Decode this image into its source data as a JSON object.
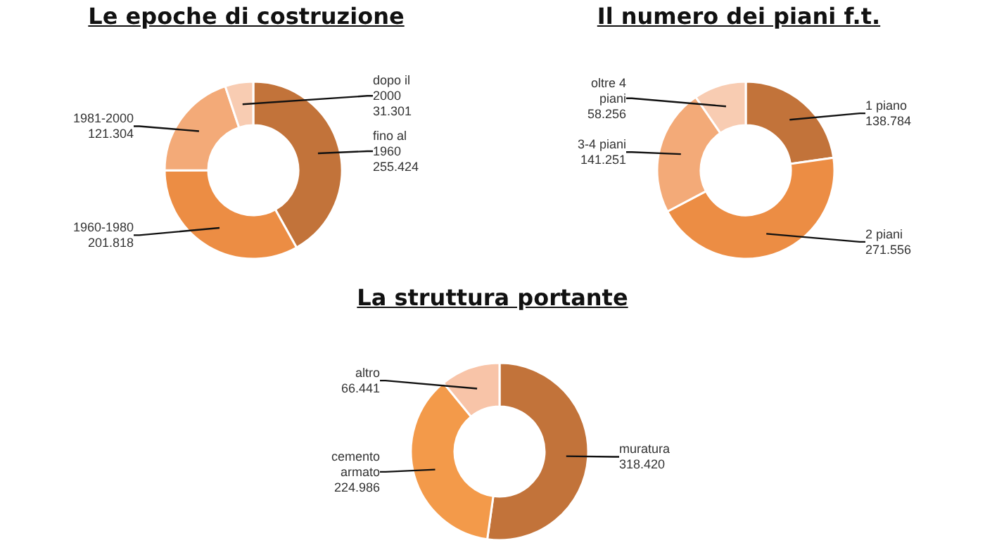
{
  "chart_data": [
    {
      "type": "donut",
      "title": "Le epoche di costruzione",
      "categories": [
        "fino al 1960",
        "1960-1980",
        "1981-2000",
        "dopo il 2000"
      ],
      "values": [
        255424,
        201818,
        121304,
        31301
      ],
      "value_labels": [
        "255.424",
        "201.818",
        "121.304",
        "31.301"
      ],
      "colors": [
        "#c2733a",
        "#ec8d44",
        "#f3aa78",
        "#f8ccb2"
      ],
      "legend": false
    },
    {
      "type": "donut",
      "title": "Il numero dei piani f.t.",
      "categories": [
        "1 piano",
        "2 piani",
        "3-4 piani",
        "oltre 4 piani"
      ],
      "values": [
        138784,
        271556,
        141251,
        58256
      ],
      "value_labels": [
        "138.784",
        "271.556",
        "141.251",
        "58.256"
      ],
      "colors": [
        "#c2733a",
        "#ec8d44",
        "#f3aa78",
        "#f8ccb2"
      ],
      "legend": false
    },
    {
      "type": "donut",
      "title": "La struttura portante",
      "categories": [
        "muratura",
        "cemento armato",
        "altro"
      ],
      "values": [
        318420,
        224986,
        66441
      ],
      "value_labels": [
        "318.420",
        "224.986",
        "66.441"
      ],
      "colors": [
        "#c2733a",
        "#f39a4a",
        "#f8c4a8"
      ],
      "legend": false
    }
  ]
}
